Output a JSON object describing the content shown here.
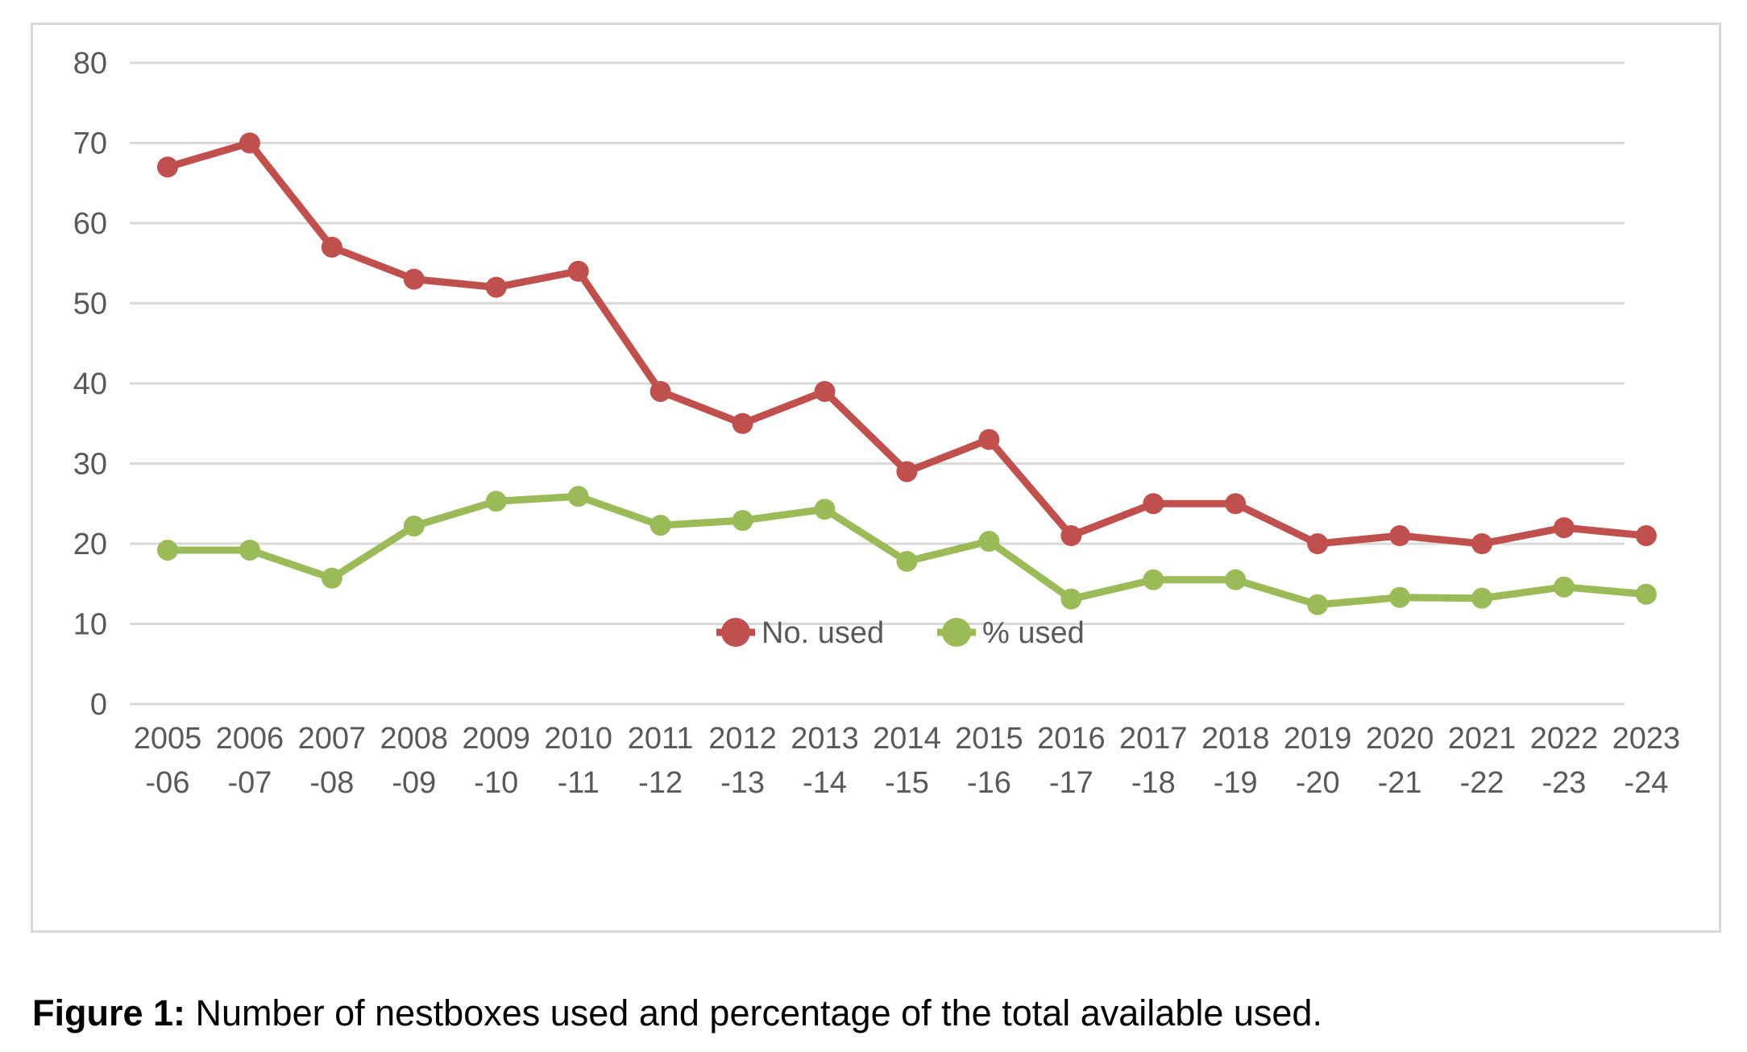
{
  "chart_data": {
    "type": "line",
    "categories": [
      [
        "2005",
        "-06"
      ],
      [
        "2006",
        "-07"
      ],
      [
        "2007",
        "-08"
      ],
      [
        "2008",
        "-09"
      ],
      [
        "2009",
        "-10"
      ],
      [
        "2010",
        "-11"
      ],
      [
        "2011",
        "-12"
      ],
      [
        "2012",
        "-13"
      ],
      [
        "2013",
        "-14"
      ],
      [
        "2014",
        "-15"
      ],
      [
        "2015",
        "-16"
      ],
      [
        "2016",
        "-17"
      ],
      [
        "2017",
        "-18"
      ],
      [
        "2018",
        "-19"
      ],
      [
        "2019",
        "-20"
      ],
      [
        "2020",
        "-21"
      ],
      [
        "2021",
        "-22"
      ],
      [
        "2022",
        "-23"
      ],
      [
        "2023",
        "-24"
      ]
    ],
    "series": [
      {
        "name": "No. used",
        "color": "#c0504d",
        "values": [
          67,
          70,
          57,
          53,
          52,
          54,
          39,
          35,
          39,
          29,
          33,
          21,
          25,
          25,
          20,
          21,
          20,
          22,
          21
        ]
      },
      {
        "name": "% used",
        "color": "#9bbb59",
        "values": [
          19.2,
          19.2,
          15.7,
          22.2,
          25.3,
          25.9,
          22.3,
          22.9,
          24.3,
          17.8,
          20.3,
          13.1,
          15.5,
          15.5,
          12.4,
          13.3,
          13.2,
          14.6,
          13.7
        ]
      }
    ],
    "yticks": [
      0,
      10,
      20,
      30,
      40,
      50,
      60,
      70,
      80
    ],
    "ylim": [
      0,
      80
    ],
    "grid": true,
    "legend_position": "bottom",
    "xlabel": "",
    "ylabel": "",
    "title": "",
    "gridline_color": "#d9d9d9"
  },
  "caption": {
    "label": "Figure 1:",
    "text": " Number of nestboxes used and percentage of the total available used."
  }
}
